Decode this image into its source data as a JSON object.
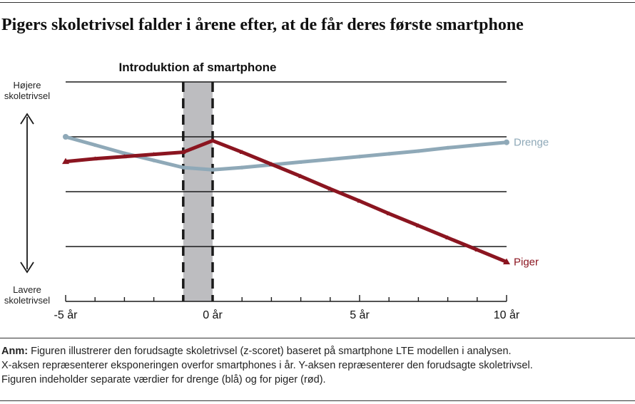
{
  "title": "Pigers skoletrivsel falder i årene efter, at de får deres første smartphone",
  "chart_data": {
    "type": "line",
    "annotation": "Introduktion af smartphone",
    "shaded_region": [
      -1,
      0
    ],
    "x_ticks": [
      -5,
      0,
      5,
      10
    ],
    "x_tick_labels": [
      "-5 år",
      "0 år",
      "5 år",
      "10 år"
    ],
    "xlim": [
      -5,
      10
    ],
    "ylim": [
      0,
      4
    ],
    "y_top_label": [
      "Højere",
      "skoletrivsel"
    ],
    "y_bottom_label": [
      "Lavere",
      "skoletrivsel"
    ],
    "grid": true,
    "series": [
      {
        "name": "Drenge",
        "color": "#8fa9b8",
        "marker": "circle",
        "x": [
          -5,
          -4,
          -3,
          -2,
          -1,
          0,
          1,
          2,
          3,
          4,
          5,
          6,
          7,
          8,
          9,
          10
        ],
        "y": [
          3.0,
          2.85,
          2.7,
          2.57,
          2.44,
          2.4,
          2.44,
          2.49,
          2.54,
          2.59,
          2.64,
          2.69,
          2.74,
          2.8,
          2.85,
          2.9
        ]
      },
      {
        "name": "Piger",
        "color": "#8b1520",
        "marker": "triangle",
        "x": [
          -5,
          -4,
          -3,
          -2,
          -1,
          0,
          1,
          2,
          3,
          4,
          5,
          6,
          7,
          8,
          9,
          10
        ],
        "y": [
          2.55,
          2.6,
          2.64,
          2.68,
          2.72,
          2.93,
          2.72,
          2.5,
          2.28,
          2.05,
          1.83,
          1.6,
          1.38,
          1.16,
          0.94,
          0.72
        ]
      }
    ]
  },
  "note": {
    "label": "Anm:",
    "line1": "Figuren illustrerer den forudsagte skoletrivsel (z-scoret) baseret på smartphone LTE modellen i analysen.",
    "line2": "X-aksen repræsenterer eksponeringen overfor smartphones i år. Y-aksen repræsenterer den forudsagte skoletrivsel.",
    "line3": "Figuren indeholder separate værdier for drenge (blå) og for piger (rød)."
  }
}
